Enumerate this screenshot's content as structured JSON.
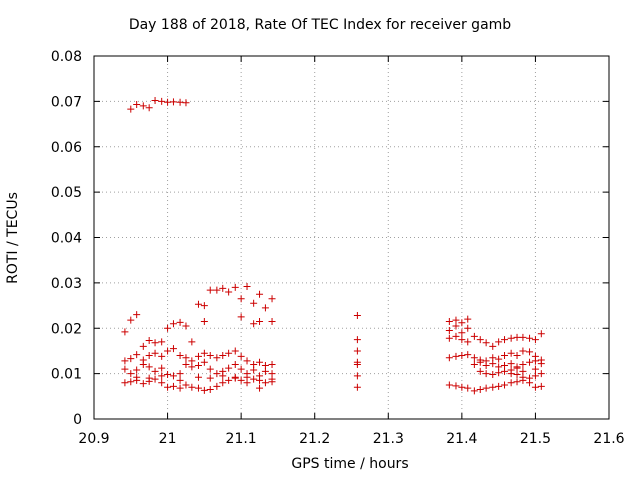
{
  "chart_data": {
    "type": "scatter",
    "title": "Day 188 of 2018, Rate Of TEC Index for receiver gamb",
    "xlabel": "GPS time / hours",
    "ylabel": "ROTI / TECUs",
    "xlim": [
      20.9,
      21.6
    ],
    "ylim": [
      0,
      0.08
    ],
    "xticks": [
      20.9,
      21.0,
      21.1,
      21.2,
      21.3,
      21.4,
      21.5,
      21.6
    ],
    "xtick_labels": [
      "20.9",
      "21",
      "21.1",
      "21.2",
      "21.3",
      "21.4",
      "21.5",
      "21.6"
    ],
    "yticks": [
      0,
      0.01,
      0.02,
      0.03,
      0.04,
      0.05,
      0.06,
      0.07,
      0.08
    ],
    "ytick_labels": [
      "0",
      "0.01",
      "0.02",
      "0.03",
      "0.04",
      "0.05",
      "0.06",
      "0.07",
      "0.08"
    ],
    "grid": true,
    "marker": "+",
    "color": "#cc0000",
    "series": [
      {
        "name": "ROTI",
        "points": [
          [
            20.95,
            0.0683
          ],
          [
            20.958,
            0.0693
          ],
          [
            20.967,
            0.069
          ],
          [
            20.975,
            0.0686
          ],
          [
            20.983,
            0.0702
          ],
          [
            20.992,
            0.07
          ],
          [
            21.0,
            0.0698
          ],
          [
            21.008,
            0.0699
          ],
          [
            21.017,
            0.0698
          ],
          [
            21.025,
            0.0697
          ],
          [
            20.942,
            0.0192
          ],
          [
            20.95,
            0.0218
          ],
          [
            20.958,
            0.023
          ],
          [
            20.967,
            0.016
          ],
          [
            20.975,
            0.0173
          ],
          [
            20.983,
            0.0168
          ],
          [
            20.992,
            0.017
          ],
          [
            21.0,
            0.02
          ],
          [
            21.008,
            0.021
          ],
          [
            21.017,
            0.0213
          ],
          [
            21.025,
            0.0205
          ],
          [
            21.033,
            0.017
          ],
          [
            21.042,
            0.0253
          ],
          [
            21.05,
            0.025
          ],
          [
            21.058,
            0.0284
          ],
          [
            21.067,
            0.0284
          ],
          [
            21.075,
            0.0288
          ],
          [
            21.083,
            0.028
          ],
          [
            21.092,
            0.029
          ],
          [
            21.1,
            0.0265
          ],
          [
            21.108,
            0.0292
          ],
          [
            21.117,
            0.0255
          ],
          [
            21.125,
            0.0275
          ],
          [
            21.133,
            0.0245
          ],
          [
            21.142,
            0.0265
          ],
          [
            21.1,
            0.0225
          ],
          [
            21.117,
            0.021
          ],
          [
            21.125,
            0.0215
          ],
          [
            21.142,
            0.0215
          ],
          [
            21.05,
            0.0215
          ],
          [
            20.942,
            0.0128
          ],
          [
            20.95,
            0.0133
          ],
          [
            20.958,
            0.0142
          ],
          [
            20.967,
            0.013
          ],
          [
            20.975,
            0.014
          ],
          [
            20.983,
            0.0145
          ],
          [
            20.992,
            0.0138
          ],
          [
            21.0,
            0.015
          ],
          [
            21.008,
            0.0155
          ],
          [
            21.017,
            0.014
          ],
          [
            21.025,
            0.0135
          ],
          [
            21.033,
            0.0128
          ],
          [
            21.042,
            0.0138
          ],
          [
            21.05,
            0.0145
          ],
          [
            21.058,
            0.014
          ],
          [
            21.067,
            0.0135
          ],
          [
            21.075,
            0.014
          ],
          [
            21.083,
            0.0145
          ],
          [
            21.092,
            0.015
          ],
          [
            21.1,
            0.0138
          ],
          [
            21.108,
            0.0128
          ],
          [
            21.117,
            0.012
          ],
          [
            21.125,
            0.0125
          ],
          [
            21.133,
            0.0118
          ],
          [
            21.142,
            0.012
          ],
          [
            20.942,
            0.011
          ],
          [
            20.95,
            0.01
          ],
          [
            20.958,
            0.0108
          ],
          [
            20.967,
            0.012
          ],
          [
            20.975,
            0.0115
          ],
          [
            20.983,
            0.0105
          ],
          [
            20.992,
            0.0112
          ],
          [
            21.0,
            0.0098
          ],
          [
            21.008,
            0.0095
          ],
          [
            21.017,
            0.01
          ],
          [
            21.025,
            0.012
          ],
          [
            21.033,
            0.0115
          ],
          [
            21.042,
            0.0118
          ],
          [
            21.05,
            0.0125
          ],
          [
            21.058,
            0.011
          ],
          [
            21.067,
            0.01
          ],
          [
            21.075,
            0.0105
          ],
          [
            21.083,
            0.0112
          ],
          [
            21.092,
            0.012
          ],
          [
            21.1,
            0.011
          ],
          [
            21.108,
            0.01
          ],
          [
            21.117,
            0.0108
          ],
          [
            21.125,
            0.0095
          ],
          [
            21.133,
            0.0105
          ],
          [
            21.142,
            0.01
          ],
          [
            20.942,
            0.008
          ],
          [
            20.95,
            0.0082
          ],
          [
            20.958,
            0.0085
          ],
          [
            20.967,
            0.0078
          ],
          [
            20.975,
            0.0083
          ],
          [
            20.983,
            0.0088
          ],
          [
            20.992,
            0.008
          ],
          [
            21.0,
            0.007
          ],
          [
            21.008,
            0.0072
          ],
          [
            21.017,
            0.0068
          ],
          [
            21.025,
            0.0075
          ],
          [
            21.033,
            0.007
          ],
          [
            21.042,
            0.0068
          ],
          [
            21.05,
            0.0063
          ],
          [
            21.058,
            0.0065
          ],
          [
            21.067,
            0.0072
          ],
          [
            21.075,
            0.008
          ],
          [
            21.083,
            0.0085
          ],
          [
            21.092,
            0.009
          ],
          [
            21.1,
            0.0085
          ],
          [
            21.108,
            0.008
          ],
          [
            21.117,
            0.0088
          ],
          [
            21.125,
            0.0068
          ],
          [
            21.133,
            0.008
          ],
          [
            21.142,
            0.0082
          ],
          [
            20.958,
            0.0092
          ],
          [
            20.975,
            0.009
          ],
          [
            20.992,
            0.0095
          ],
          [
            21.017,
            0.0085
          ],
          [
            21.042,
            0.0092
          ],
          [
            21.058,
            0.009
          ],
          [
            21.075,
            0.0095
          ],
          [
            21.092,
            0.0092
          ],
          [
            21.108,
            0.0092
          ],
          [
            21.125,
            0.0085
          ],
          [
            21.142,
            0.0088
          ],
          [
            21.258,
            0.0228
          ],
          [
            21.258,
            0.0175
          ],
          [
            21.258,
            0.015
          ],
          [
            21.258,
            0.0125
          ],
          [
            21.258,
            0.012
          ],
          [
            21.258,
            0.0095
          ],
          [
            21.258,
            0.007
          ],
          [
            21.383,
            0.0215
          ],
          [
            21.392,
            0.0218
          ],
          [
            21.4,
            0.0212
          ],
          [
            21.408,
            0.022
          ],
          [
            21.383,
            0.0195
          ],
          [
            21.392,
            0.0205
          ],
          [
            21.4,
            0.019
          ],
          [
            21.408,
            0.02
          ],
          [
            21.417,
            0.0182
          ],
          [
            21.425,
            0.0175
          ],
          [
            21.433,
            0.0168
          ],
          [
            21.442,
            0.016
          ],
          [
            21.45,
            0.017
          ],
          [
            21.458,
            0.0175
          ],
          [
            21.467,
            0.0178
          ],
          [
            21.475,
            0.018
          ],
          [
            21.483,
            0.018
          ],
          [
            21.492,
            0.0178
          ],
          [
            21.5,
            0.0175
          ],
          [
            21.508,
            0.0188
          ],
          [
            21.383,
            0.0178
          ],
          [
            21.392,
            0.0182
          ],
          [
            21.4,
            0.0175
          ],
          [
            21.408,
            0.017
          ],
          [
            21.383,
            0.0135
          ],
          [
            21.392,
            0.0138
          ],
          [
            21.4,
            0.014
          ],
          [
            21.408,
            0.0142
          ],
          [
            21.417,
            0.0135
          ],
          [
            21.425,
            0.013
          ],
          [
            21.433,
            0.0128
          ],
          [
            21.442,
            0.0135
          ],
          [
            21.45,
            0.0132
          ],
          [
            21.458,
            0.014
          ],
          [
            21.467,
            0.0145
          ],
          [
            21.475,
            0.014
          ],
          [
            21.483,
            0.015
          ],
          [
            21.492,
            0.0148
          ],
          [
            21.5,
            0.0138
          ],
          [
            21.508,
            0.013
          ],
          [
            21.417,
            0.012
          ],
          [
            21.425,
            0.0125
          ],
          [
            21.433,
            0.0118
          ],
          [
            21.442,
            0.0122
          ],
          [
            21.45,
            0.0115
          ],
          [
            21.458,
            0.0118
          ],
          [
            21.467,
            0.0122
          ],
          [
            21.475,
            0.0115
          ],
          [
            21.483,
            0.012
          ],
          [
            21.492,
            0.0125
          ],
          [
            21.5,
            0.0128
          ],
          [
            21.508,
            0.0122
          ],
          [
            21.425,
            0.0105
          ],
          [
            21.433,
            0.01
          ],
          [
            21.442,
            0.0098
          ],
          [
            21.45,
            0.0102
          ],
          [
            21.458,
            0.0105
          ],
          [
            21.467,
            0.01
          ],
          [
            21.475,
            0.0098
          ],
          [
            21.483,
            0.0092
          ],
          [
            21.492,
            0.009
          ],
          [
            21.5,
            0.0095
          ],
          [
            21.508,
            0.01
          ],
          [
            21.383,
            0.0075
          ],
          [
            21.392,
            0.0073
          ],
          [
            21.4,
            0.007
          ],
          [
            21.408,
            0.0068
          ],
          [
            21.417,
            0.0062
          ],
          [
            21.425,
            0.0065
          ],
          [
            21.433,
            0.0068
          ],
          [
            21.442,
            0.007
          ],
          [
            21.45,
            0.0072
          ],
          [
            21.458,
            0.0075
          ],
          [
            21.467,
            0.008
          ],
          [
            21.475,
            0.0082
          ],
          [
            21.483,
            0.0085
          ],
          [
            21.492,
            0.008
          ],
          [
            21.5,
            0.007
          ],
          [
            21.508,
            0.0072
          ],
          [
            21.467,
            0.0108
          ],
          [
            21.475,
            0.0112
          ],
          [
            21.483,
            0.0105
          ],
          [
            21.5,
            0.011
          ]
        ]
      }
    ]
  }
}
